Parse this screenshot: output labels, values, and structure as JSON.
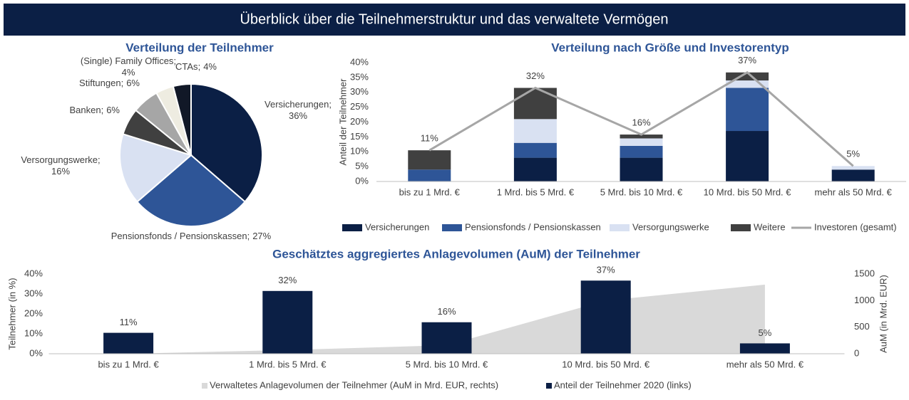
{
  "header": {
    "title": "Überblick über die Teilnehmerstruktur und das verwaltete Vermögen"
  },
  "chart_data": [
    {
      "type": "pie",
      "title": "Verteilung der Teilnehmer",
      "categories": [
        "Versicherungen",
        "Pensionsfonds / Pensionskassen",
        "Versorgungswerke",
        "Banken",
        "Stiftungen",
        "(Single) Family Offices",
        "CTAs"
      ],
      "values": [
        36,
        27,
        16,
        6,
        6,
        4,
        4
      ],
      "value_labels": [
        "36%",
        "27%",
        "16%",
        "6%",
        "6%",
        "4%",
        "4%"
      ],
      "label_separator": ";",
      "colors": [
        "#0b1f45",
        "#2e5597",
        "#d9e1f2",
        "#404040",
        "#a6a6a6",
        "#eeece1",
        "#111827"
      ]
    },
    {
      "type": "stacked_bar",
      "title": "Verteilung nach Größe und Investorentyp",
      "y_label": "Anteil der Teilnehmer",
      "categories": [
        "bis zu 1 Mrd. €",
        "1 Mrd. bis 5 Mrd. €",
        "5 Mrd. bis 10 Mrd. €",
        "10 Mrd. bis 50 Mrd. €",
        "mehr als 50 Mrd. €"
      ],
      "series": [
        {
          "name": "Versicherungen",
          "color": "#0b1f45",
          "values": [
            0,
            8,
            8,
            17,
            4
          ]
        },
        {
          "name": "Pensionsfonds / Pensionskassen",
          "color": "#2e5597",
          "values": [
            4,
            5,
            4,
            14.5,
            0
          ]
        },
        {
          "name": "Versorgungswerke",
          "color": "#d9e1f2",
          "values": [
            0,
            8,
            2.5,
            2.5,
            1.2
          ]
        },
        {
          "name": "Weitere",
          "color": "#404040",
          "values": [
            6.5,
            10.5,
            1.3,
            2.7,
            0
          ]
        },
        {
          "name": "Investoren (gesamt)",
          "type": "line",
          "color": "#a6a6a6",
          "values": [
            10.5,
            31.5,
            15.8,
            36.7,
            5.2
          ],
          "value_labels": [
            "11%",
            "32%",
            "16%",
            "37%",
            "5%"
          ]
        }
      ],
      "ylim": [
        0,
        40
      ],
      "yticks": [
        {
          "value": 0,
          "label": "0%"
        },
        {
          "value": 5,
          "label": "5%"
        },
        {
          "value": 10,
          "label": "10%"
        },
        {
          "value": 15,
          "label": "15%"
        },
        {
          "value": 20,
          "label": "20%"
        },
        {
          "value": 25,
          "label": "25%"
        },
        {
          "value": 30,
          "label": "30%"
        },
        {
          "value": 35,
          "label": "35%"
        },
        {
          "value": 40,
          "label": "40%"
        }
      ],
      "grid": false,
      "legend": "bottom"
    },
    {
      "type": "bar",
      "title": "Geschätztes aggregiertes Anlagevolumen (AuM) der Teilnehmer",
      "y_label": "Teilnehmer (in %)",
      "y2_label": "AuM (in Mrd. EUR)",
      "categories": [
        "bis zu 1 Mrd. €",
        "1 Mrd. bis 5 Mrd. €",
        "5 Mrd. bis 10 Mrd. €",
        "10 Mrd. bis 50 Mrd. €",
        "mehr als 50 Mrd. €"
      ],
      "series": [
        {
          "name": "Verwaltetes Anlagevolumen der Teilnehmer (AuM in Mrd. EUR, rechts)",
          "type": "area",
          "axis": "y2",
          "color": "#d9d9d9",
          "values": [
            0,
            70,
            160,
            1000,
            1300
          ]
        },
        {
          "name": "Anteil der Teilnehmer 2020 (links)",
          "type": "bar",
          "color": "#0b1f45",
          "values": [
            10.5,
            31.5,
            15.8,
            36.7,
            5.2
          ],
          "value_labels": [
            "11%",
            "32%",
            "16%",
            "37%",
            "5%"
          ]
        }
      ],
      "ylim": [
        0,
        40
      ],
      "yticks": [
        {
          "value": 0,
          "label": "0%"
        },
        {
          "value": 10,
          "label": "10%"
        },
        {
          "value": 20,
          "label": "20%"
        },
        {
          "value": 30,
          "label": "30%"
        },
        {
          "value": 40,
          "label": "40%"
        }
      ],
      "y2lim": [
        0,
        1500
      ],
      "y2ticks": [
        0,
        500,
        1000,
        1500
      ],
      "grid": false,
      "legend": "bottom"
    }
  ]
}
